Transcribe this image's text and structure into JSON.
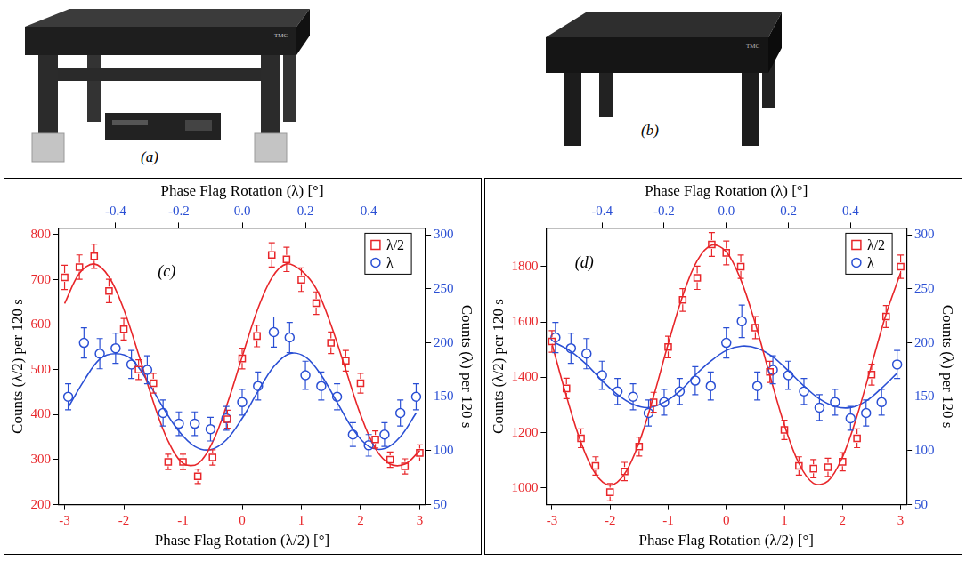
{
  "images": [
    {
      "label": "(a)",
      "logo": "TMC"
    },
    {
      "label": "(b)",
      "logo": "TMC"
    }
  ],
  "chart_data": [
    {
      "type": "scatter",
      "annotation": "(c)",
      "xlabel": "Phase Flag Rotation (λ/2) [°]",
      "x2label": "Phase Flag Rotation (λ) [°]",
      "ylabel": "Counts (λ/2) per 120 s",
      "y2label": "Counts (λ) per 120 s",
      "xlim": [
        -3.1,
        3.1
      ],
      "xticks": [
        -3,
        -2,
        -1,
        0,
        1,
        2,
        3
      ],
      "x2lim": [
        -0.58,
        0.58
      ],
      "x2ticks": [
        -0.4,
        -0.2,
        {
          "value": 0,
          "label": "0.0"
        },
        0.2,
        0.4
      ],
      "ylim": [
        200,
        815
      ],
      "yticks": [
        200,
        300,
        400,
        500,
        600,
        700,
        800
      ],
      "y2lim": [
        50,
        306.5
      ],
      "y2ticks": [
        50,
        100,
        150,
        200,
        250,
        300
      ],
      "grid": false,
      "legend": "upper right",
      "series": [
        {
          "name": "λ/2",
          "color": "#e8262a",
          "marker": "square",
          "x": [
            -3,
            -2.75,
            -2.5,
            -2.25,
            -2,
            -1.75,
            -1.5,
            -1.25,
            -1,
            -0.75,
            -0.5,
            -0.25,
            0,
            0.25,
            0.5,
            0.75,
            1,
            1.25,
            1.5,
            1.75,
            2,
            2.25,
            2.5,
            2.75,
            3
          ],
          "values": [
            705,
            728,
            752,
            675,
            590,
            500,
            470,
            295,
            295,
            263,
            305,
            390,
            525,
            575,
            755,
            745,
            700,
            648,
            560,
            520,
            470,
            345,
            300,
            285,
            315
          ],
          "errors": [
            27,
            27,
            27,
            26,
            24,
            22,
            22,
            17,
            17,
            16,
            17,
            20,
            23,
            24,
            27,
            27,
            26,
            25,
            24,
            23,
            22,
            19,
            17,
            17,
            18
          ],
          "fit": {
            "line_style": "solid",
            "x": [
              -3,
              -2.75,
              -2.5,
              -2.25,
              -2,
              -1.75,
              -1.5,
              -1.25,
              -1,
              -0.75,
              -0.5,
              -0.25,
              0,
              0.25,
              0.5,
              0.75,
              1,
              1.25,
              1.5,
              1.75,
              2,
              2.25,
              2.5,
              2.75,
              3
            ],
            "values": [
              647,
              714,
              735,
              706,
              634,
              534,
              428,
              341,
              292,
              291,
              339,
              425,
              529,
              630,
              704,
              735,
              720,
              680,
              600,
              500,
              400,
              325,
              290,
              290,
              320
            ]
          }
        },
        {
          "name": "λ",
          "color": "#2a4fd4",
          "marker": "circle",
          "axis": "y2",
          "x": [
            -0.55,
            -0.5,
            -0.45,
            -0.4,
            -0.35,
            -0.3,
            -0.25,
            -0.2,
            -0.15,
            -0.1,
            -0.05,
            0,
            0.05,
            0.1,
            0.15,
            0.2,
            0.25,
            0.3,
            0.35,
            0.4,
            0.45,
            0.5,
            0.55
          ],
          "values": [
            150,
            200,
            190,
            195,
            180,
            175,
            135,
            125,
            125,
            120,
            130,
            145,
            160,
            210,
            205,
            170,
            160,
            150,
            115,
            105,
            115,
            135,
            150
          ],
          "errors": [
            12,
            14,
            14,
            14,
            13,
            13,
            12,
            11,
            11,
            11,
            11,
            12,
            13,
            14,
            14,
            13,
            13,
            12,
            11,
            10,
            11,
            12,
            12
          ],
          "fit": {
            "line_style": "solid",
            "x": [
              -0.55,
              -0.5,
              -0.45,
              -0.4,
              -0.35,
              -0.3,
              -0.25,
              -0.2,
              -0.15,
              -0.1,
              -0.05,
              0,
              0.05,
              0.1,
              0.15,
              0.2,
              0.25,
              0.3,
              0.35,
              0.4,
              0.45,
              0.5,
              0.55
            ],
            "values": [
              140,
              165,
              185,
              190,
              185,
              165,
              140,
              118,
              104,
              101,
              110,
              130,
              155,
              178,
              190,
              187,
              170,
              145,
              120,
              104,
              102,
              113,
              135
            ]
          }
        }
      ]
    },
    {
      "type": "scatter",
      "annotation": "(d)",
      "xlabel": "Phase Flag Rotation (λ/2) [°]",
      "x2label": "Phase Flag Rotation (λ) [°]",
      "ylabel": "Counts (λ/2) per 120 s",
      "y2label": "Counts (λ) per 120 s",
      "xlim": [
        -3.1,
        3.1
      ],
      "xticks": [
        -3,
        -2,
        -1,
        0,
        1,
        2,
        3
      ],
      "x2lim": [
        -0.58,
        0.58
      ],
      "x2ticks": [
        -0.4,
        -0.2,
        {
          "value": 0,
          "label": "0.0"
        },
        0.2,
        0.4
      ],
      "ylim": [
        940,
        1940
      ],
      "yticks": [
        1000,
        1200,
        1400,
        1600,
        1800
      ],
      "y2lim": [
        50,
        306.5
      ],
      "y2ticks": [
        50,
        100,
        150,
        200,
        250,
        300
      ],
      "grid": false,
      "legend": "upper right",
      "series": [
        {
          "name": "λ/2",
          "color": "#e8262a",
          "marker": "square",
          "x": [
            -3,
            -2.75,
            -2.5,
            -2.25,
            -2,
            -1.75,
            -1.5,
            -1.25,
            -1,
            -0.75,
            -0.5,
            -0.25,
            0,
            0.25,
            0.5,
            0.75,
            1,
            1.25,
            1.5,
            1.75,
            2,
            2.25,
            2.5,
            2.75,
            3
          ],
          "values": [
            1530,
            1360,
            1180,
            1080,
            985,
            1060,
            1150,
            1310,
            1510,
            1680,
            1760,
            1880,
            1850,
            1800,
            1580,
            1420,
            1210,
            1080,
            1070,
            1075,
            1095,
            1180,
            1410,
            1620,
            1800
          ],
          "errors": [
            39,
            37,
            34,
            33,
            31,
            33,
            34,
            36,
            39,
            41,
            42,
            43,
            43,
            42,
            40,
            38,
            35,
            33,
            33,
            33,
            33,
            34,
            38,
            40,
            42
          ],
          "fit": {
            "line_style": "solid",
            "x": [
              -3,
              -2.75,
              -2.5,
              -2.25,
              -2,
              -1.75,
              -1.5,
              -1.25,
              -1,
              -0.75,
              -0.5,
              -0.25,
              0,
              0.25,
              0.5,
              0.75,
              1,
              1.25,
              1.5,
              1.75,
              2,
              2.25,
              2.5,
              2.75,
              3
            ],
            "values": [
              1521,
              1332,
              1165,
              1051,
              1010,
              1051,
              1165,
              1332,
              1521,
              1695,
              1822,
              1878,
              1854,
              1753,
              1594,
              1407,
              1228,
              1089,
              1017,
              1025,
              1112,
              1261,
              1445,
              1629,
              1778
            ]
          }
        },
        {
          "name": "λ",
          "color": "#2a4fd4",
          "marker": "circle",
          "axis": "y2",
          "x": [
            -0.55,
            -0.5,
            -0.45,
            -0.4,
            -0.35,
            -0.3,
            -0.25,
            -0.2,
            -0.15,
            -0.1,
            -0.05,
            0,
            0.05,
            0.1,
            0.15,
            0.2,
            0.25,
            0.3,
            0.35,
            0.4,
            0.45,
            0.5,
            0.55
          ],
          "values": [
            205,
            195,
            190,
            170,
            155,
            150,
            135,
            145,
            155,
            165,
            160,
            200,
            220,
            160,
            175,
            170,
            155,
            140,
            145,
            130,
            135,
            145,
            180
          ],
          "errors": [
            14,
            14,
            14,
            13,
            12,
            12,
            12,
            12,
            12,
            13,
            13,
            14,
            15,
            13,
            13,
            13,
            12,
            12,
            12,
            11,
            12,
            12,
            13
          ],
          "fit": {
            "line_style": "solid",
            "x": [
              -0.55,
              -0.5,
              -0.45,
              -0.4,
              -0.35,
              -0.3,
              -0.25,
              -0.2,
              -0.15,
              -0.1,
              -0.05,
              0,
              0.05,
              0.1,
              0.15,
              0.2,
              0.25,
              0.3,
              0.35,
              0.4,
              0.45,
              0.5,
              0.55
            ],
            "values": [
              200,
              192,
              180,
              165,
              152,
              143,
              140,
              145,
              155,
              170,
              183,
              193,
              197,
              195,
              187,
              174,
              160,
              148,
              141,
              140,
              146,
              158,
              172
            ]
          }
        }
      ]
    }
  ]
}
